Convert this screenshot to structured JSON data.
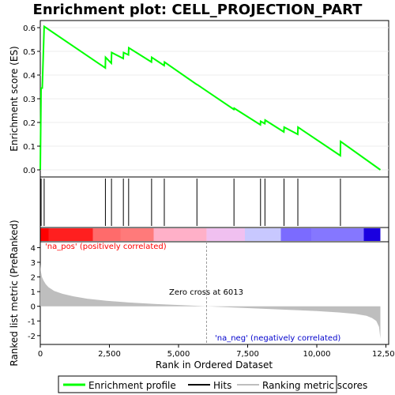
{
  "chart_data": {
    "type": "line",
    "title": "Enrichment plot: CELL_PROJECTION_PART",
    "colors": {
      "enrichment": "#00ff00",
      "hits": "#000000",
      "metric_fill": "#bebebe",
      "pos_text": "#ff0000",
      "neg_text": "#0000cc",
      "zero_line": "#999999",
      "gradient": [
        "#ff0000",
        "#ff6b6b",
        "#ffb0c8",
        "#f0c0f0",
        "#c8c8ff",
        "#7b6bff",
        "#1a00e0"
      ]
    },
    "es_panel": {
      "ylabel": "Enrichment score (ES)",
      "yticks": [
        "0.0",
        "0.1",
        "0.2",
        "0.3",
        "0.4",
        "0.5",
        "0.6"
      ],
      "ylim": [
        -0.03,
        0.63
      ],
      "x": [
        0,
        30,
        70,
        140,
        2350,
        2360,
        2570,
        2580,
        3000,
        3010,
        3190,
        3200,
        4020,
        4030,
        4480,
        4490,
        5660,
        5670,
        7000,
        7010,
        7960,
        7970,
        8120,
        8130,
        8810,
        8820,
        9310,
        9320,
        10850,
        10860,
        12300
      ],
      "y": [
        0.0,
        0.345,
        0.345,
        0.605,
        0.43,
        0.475,
        0.45,
        0.495,
        0.47,
        0.495,
        0.485,
        0.515,
        0.455,
        0.475,
        0.44,
        0.455,
        0.36,
        0.36,
        0.255,
        0.26,
        0.19,
        0.205,
        0.195,
        0.21,
        0.16,
        0.18,
        0.15,
        0.18,
        0.06,
        0.12,
        0.0
      ]
    },
    "hits": [
      30,
      140,
      2355,
      2575,
      3005,
      3195,
      4025,
      4485,
      5665,
      7005,
      7965,
      8125,
      8815,
      9315,
      10855
    ],
    "metric_panel": {
      "ylabel": "Ranked list metric (PreRanked)",
      "yticks": [
        "-2",
        "-1",
        "0",
        "1",
        "2",
        "3",
        "4"
      ],
      "ylim": [
        -2.6,
        4.4
      ],
      "zero_cross": 6013,
      "zero_cross_label": "Zero cross at 6013",
      "pos_label": "'na_pos' (positively correlated)",
      "neg_label": "'na_neg' (negatively correlated)",
      "x": [
        0,
        20,
        60,
        120,
        200,
        300,
        500,
        800,
        1200,
        1700,
        2400,
        3200,
        4200,
        5200,
        6013,
        7000,
        8000,
        9000,
        10000,
        10800,
        11400,
        11800,
        12000,
        12150,
        12250,
        12300
      ],
      "y": [
        2.9,
        2.4,
        2.0,
        1.75,
        1.5,
        1.3,
        1.05,
        0.85,
        0.68,
        0.52,
        0.38,
        0.26,
        0.15,
        0.07,
        0.0,
        -0.08,
        -0.16,
        -0.24,
        -0.33,
        -0.42,
        -0.52,
        -0.65,
        -0.8,
        -1.0,
        -1.4,
        -2.2
      ]
    },
    "xaxis": {
      "xlabel": "Rank in Ordered Dataset",
      "xticks": [
        0,
        2500,
        5000,
        7500,
        10000,
        12500
      ],
      "xtick_labels": [
        "0",
        "2,500",
        "5,000",
        "7,500",
        "10,000",
        "12,500"
      ],
      "xlim": [
        0,
        12600
      ]
    },
    "legend": {
      "placement": "bottom",
      "items": [
        {
          "label": "Enrichment profile",
          "color": "#00ff00"
        },
        {
          "label": "Hits",
          "color": "#000000"
        },
        {
          "label": "Ranking metric scores",
          "color": "#bebebe"
        }
      ]
    }
  }
}
